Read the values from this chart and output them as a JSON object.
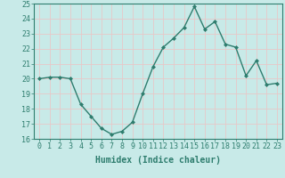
{
  "x": [
    0,
    1,
    2,
    3,
    4,
    5,
    6,
    7,
    8,
    9,
    10,
    11,
    12,
    13,
    14,
    15,
    16,
    17,
    18,
    19,
    20,
    21,
    22,
    23
  ],
  "y": [
    20.0,
    20.1,
    20.1,
    20.0,
    18.3,
    17.5,
    16.7,
    16.3,
    16.5,
    17.1,
    19.0,
    20.8,
    22.1,
    22.7,
    23.4,
    24.8,
    23.3,
    23.8,
    22.3,
    22.1,
    20.2,
    21.2,
    19.6,
    19.7
  ],
  "line_color": "#2E7D6E",
  "marker": "D",
  "marker_size": 2.0,
  "bg_color": "#C8EAE8",
  "grid_color_major": "#e8c8c8",
  "grid_color_minor": "#e8c8c8",
  "xlabel": "Humidex (Indice chaleur)",
  "ylim": [
    16,
    25
  ],
  "xlim": [
    -0.5,
    23.5
  ],
  "yticks": [
    16,
    17,
    18,
    19,
    20,
    21,
    22,
    23,
    24,
    25
  ],
  "xticks": [
    0,
    1,
    2,
    3,
    4,
    5,
    6,
    7,
    8,
    9,
    10,
    11,
    12,
    13,
    14,
    15,
    16,
    17,
    18,
    19,
    20,
    21,
    22,
    23
  ],
  "xlabel_fontsize": 7,
  "tick_fontsize": 6,
  "line_width": 1.0,
  "spine_color": "#2E7D6E",
  "tick_color": "#2E7D6E"
}
